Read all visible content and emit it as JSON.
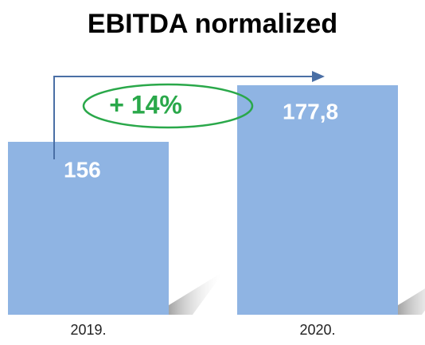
{
  "chart_data": {
    "type": "bar",
    "title": "EBITDA normalized",
    "categories": [
      "2019.",
      "2020."
    ],
    "values": [
      156,
      177.8
    ],
    "value_labels": [
      "156",
      "177,8"
    ],
    "color": "#8fb4e3",
    "ylim": [
      89.4,
      183
    ],
    "annotation": "+ 14%"
  }
}
